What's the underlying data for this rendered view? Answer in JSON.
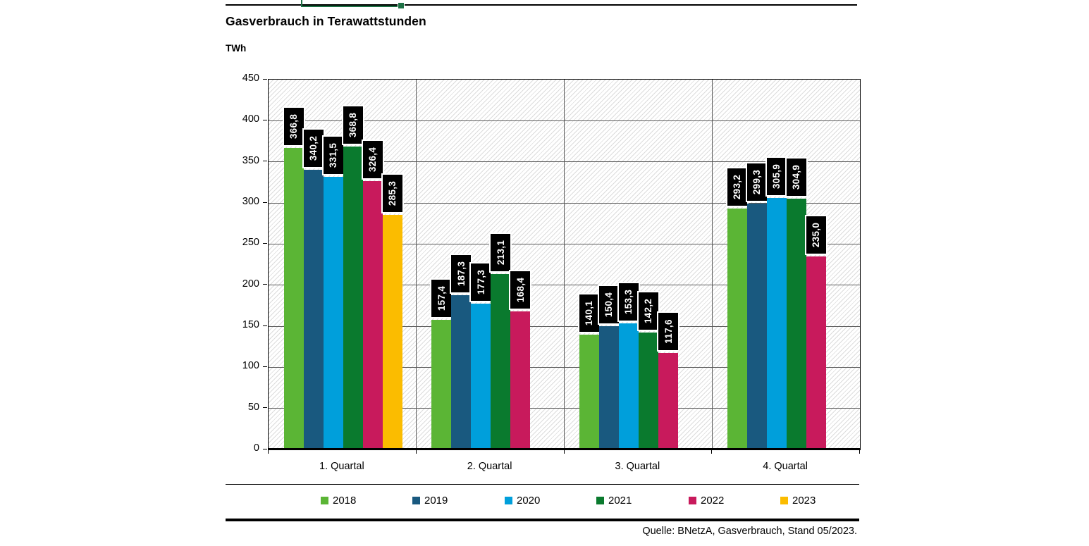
{
  "header": {
    "title": "Gasverbrauch in Terawattstunden",
    "unit": "TWh"
  },
  "source_note": "Quelle: BNetzA, Gasverbrauch, Stand 05/2023.",
  "selection": {
    "color": "#1E7145"
  },
  "chart_data": {
    "type": "bar",
    "title": "Gasverbrauch in Terawattstunden",
    "ylabel": "TWh",
    "xlabel": "",
    "ylim": [
      0,
      450
    ],
    "ytick_interval": 50,
    "yticks": [
      450,
      400,
      350,
      300,
      250,
      200,
      150,
      100,
      50,
      0
    ],
    "grid": true,
    "hatch_background": true,
    "legend_position": "bottom",
    "categories": [
      "1. Quartal",
      "2. Quartal",
      "3. Quartal",
      "4. Quartal"
    ],
    "series": [
      {
        "name": "2018",
        "color": "#5BB535",
        "values": [
          366.8,
          157.4,
          140.1,
          293.2
        ],
        "labels": [
          "366,8",
          "157,4",
          "140,1",
          "293,2"
        ]
      },
      {
        "name": "2019",
        "color": "#19597F",
        "values": [
          340.2,
          187.3,
          150.4,
          299.3
        ],
        "labels": [
          "340,2",
          "187,3",
          "150,4",
          "299,3"
        ]
      },
      {
        "name": "2020",
        "color": "#009FDB",
        "values": [
          331.5,
          177.3,
          153.3,
          305.9
        ],
        "labels": [
          "331,5",
          "177,3",
          "153,3",
          "305,9"
        ]
      },
      {
        "name": "2021",
        "color": "#0A7A2E",
        "values": [
          368.8,
          213.1,
          142.2,
          304.9
        ],
        "labels": [
          "368,8",
          "213,1",
          "142,2",
          "304,9"
        ]
      },
      {
        "name": "2022",
        "color": "#C81A5C",
        "values": [
          326.4,
          168.4,
          117.6,
          235.0
        ],
        "labels": [
          "326,4",
          "168,4",
          "117,6",
          "235,0"
        ]
      },
      {
        "name": "2023",
        "color": "#FBBC00",
        "values": [
          285.3,
          null,
          null,
          null
        ],
        "labels": [
          "285,3",
          null,
          null,
          null
        ]
      }
    ]
  }
}
